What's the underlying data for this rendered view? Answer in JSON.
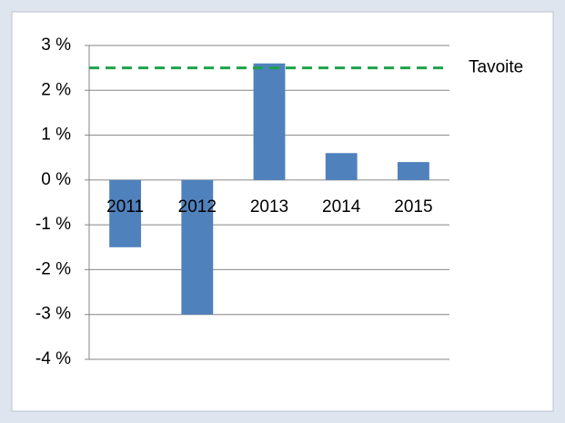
{
  "chart_data": {
    "type": "bar",
    "categories": [
      "2011",
      "2012",
      "2013",
      "2014",
      "2015"
    ],
    "values": [
      -1.5,
      -3,
      2.6,
      0.6,
      0.4
    ],
    "color": "#4f81bd",
    "ylim": [
      -4,
      3
    ],
    "yticks": [
      {
        "value": -4,
        "label": "-4 %"
      },
      {
        "value": -3,
        "label": "-3 %"
      },
      {
        "value": -2,
        "label": "-2 %"
      },
      {
        "value": -1,
        "label": "-1 %"
      },
      {
        "value": 0,
        "label": "0 %"
      },
      {
        "value": 1,
        "label": "1 %"
      },
      {
        "value": 2,
        "label": "2 %"
      },
      {
        "value": 3,
        "label": "3 %"
      }
    ],
    "grid": true,
    "target": {
      "value": 2.5,
      "label": "Tavoite",
      "color": "#1fa24a"
    }
  }
}
